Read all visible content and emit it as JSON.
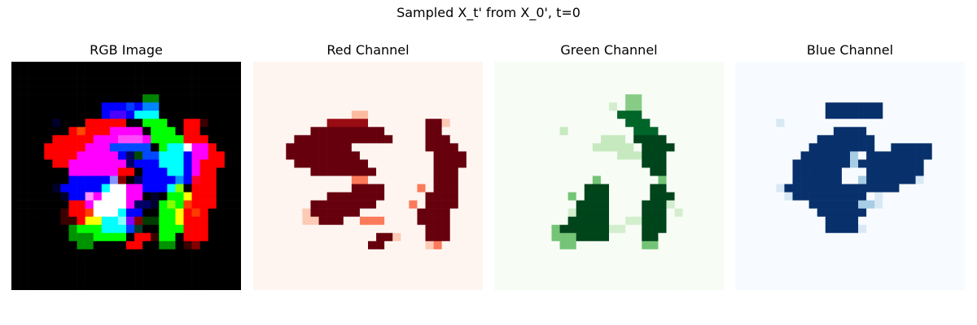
{
  "figure": {
    "title": "Sampled X_t' from X_0', t=0"
  },
  "chart_data": [
    {
      "type": "heatmap",
      "title": "RGB Image",
      "channel": "rgb",
      "grid": [
        28,
        28
      ],
      "axis": "off"
    },
    {
      "type": "heatmap",
      "title": "Red Channel",
      "channel": "red",
      "colormap": "Reds",
      "low_color": "#fff5f0",
      "high_color": "#67000d",
      "grid": [
        28,
        28
      ],
      "axis": "off"
    },
    {
      "type": "heatmap",
      "title": "Green Channel",
      "channel": "green",
      "colormap": "Greens",
      "low_color": "#f7fcf5",
      "high_color": "#00441b",
      "grid": [
        28,
        28
      ],
      "axis": "off"
    },
    {
      "type": "heatmap",
      "title": "Blue Channel",
      "channel": "blue",
      "colormap": "Blues",
      "low_color": "#f7fbff",
      "high_color": "#08306b",
      "grid": [
        28,
        28
      ],
      "axis": "off"
    }
  ]
}
